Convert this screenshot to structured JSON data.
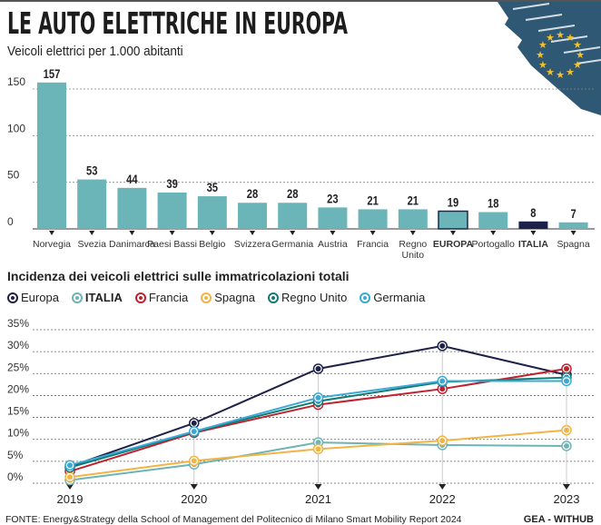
{
  "header": {
    "title": "LE AUTO ELETTRICHE IN EUROPA",
    "subtitle": "Veicoli elettrici per 1.000 abitanti"
  },
  "colors": {
    "bar": "#6bb5b8",
    "europa_outline": "#1e2a4a",
    "italia": "#1b2148",
    "flag_blue": "#2f5875",
    "star": "#f5c12b"
  },
  "chart_data": [
    {
      "type": "bar",
      "title": "",
      "ylabel": "Veicoli elettrici per 1.000 abitanti",
      "ylim": [
        0,
        160
      ],
      "yticks": [
        0,
        50,
        100,
        150
      ],
      "grid": true,
      "categories": [
        "Norvegia",
        "Svezia",
        "Danimarca",
        "Paesi Bassi",
        "Belgio",
        "Svizzera",
        "Germania",
        "Austria",
        "Francia",
        "Regno Unito",
        "EUROPA",
        "Portogallo",
        "ITALIA",
        "Spagna"
      ],
      "values": [
        157,
        53,
        44,
        39,
        35,
        28,
        28,
        23,
        21,
        21,
        19,
        18,
        8,
        7
      ],
      "highlight": {
        "EUROPA": "outlined",
        "ITALIA": "dark"
      }
    },
    {
      "type": "line",
      "title": "Incidenza dei veicoli elettrici sulle immatricolazioni totali",
      "x": [
        "2019",
        "2020",
        "2021",
        "2022",
        "2023"
      ],
      "ylim": [
        0,
        35
      ],
      "yticks": [
        "0%",
        "5%",
        "10%",
        "15%",
        "20%",
        "25%",
        "30%",
        "35%"
      ],
      "grid": true,
      "legend": "top-left",
      "series": [
        {
          "name": "Europa",
          "color": "#1e2248",
          "values": [
            3.8,
            13.7,
            26.1,
            31.3,
            24.7
          ]
        },
        {
          "name": "ITALIA",
          "color": "#6fb3b5",
          "values": [
            0.7,
            4.3,
            9.3,
            8.7,
            8.5
          ]
        },
        {
          "name": "Francia",
          "color": "#c0212f",
          "values": [
            2.7,
            11.5,
            17.9,
            21.5,
            26.1
          ]
        },
        {
          "name": "Spagna",
          "color": "#f2b444",
          "values": [
            1.4,
            5.1,
            7.8,
            9.7,
            12.1
          ]
        },
        {
          "name": "Regno Unito",
          "color": "#137a73",
          "values": [
            3.6,
            11.7,
            18.7,
            23.1,
            24.1
          ]
        },
        {
          "name": "Germania",
          "color": "#3aa9d6",
          "values": [
            4.1,
            11.8,
            19.5,
            23.3,
            23.3
          ]
        }
      ]
    }
  ],
  "footer": {
    "source": "FONTE: Energy&Strategy della School of Management del Politecnico di Milano Smart Mobility Report 2024",
    "credit": "GEA - WITHUB"
  }
}
